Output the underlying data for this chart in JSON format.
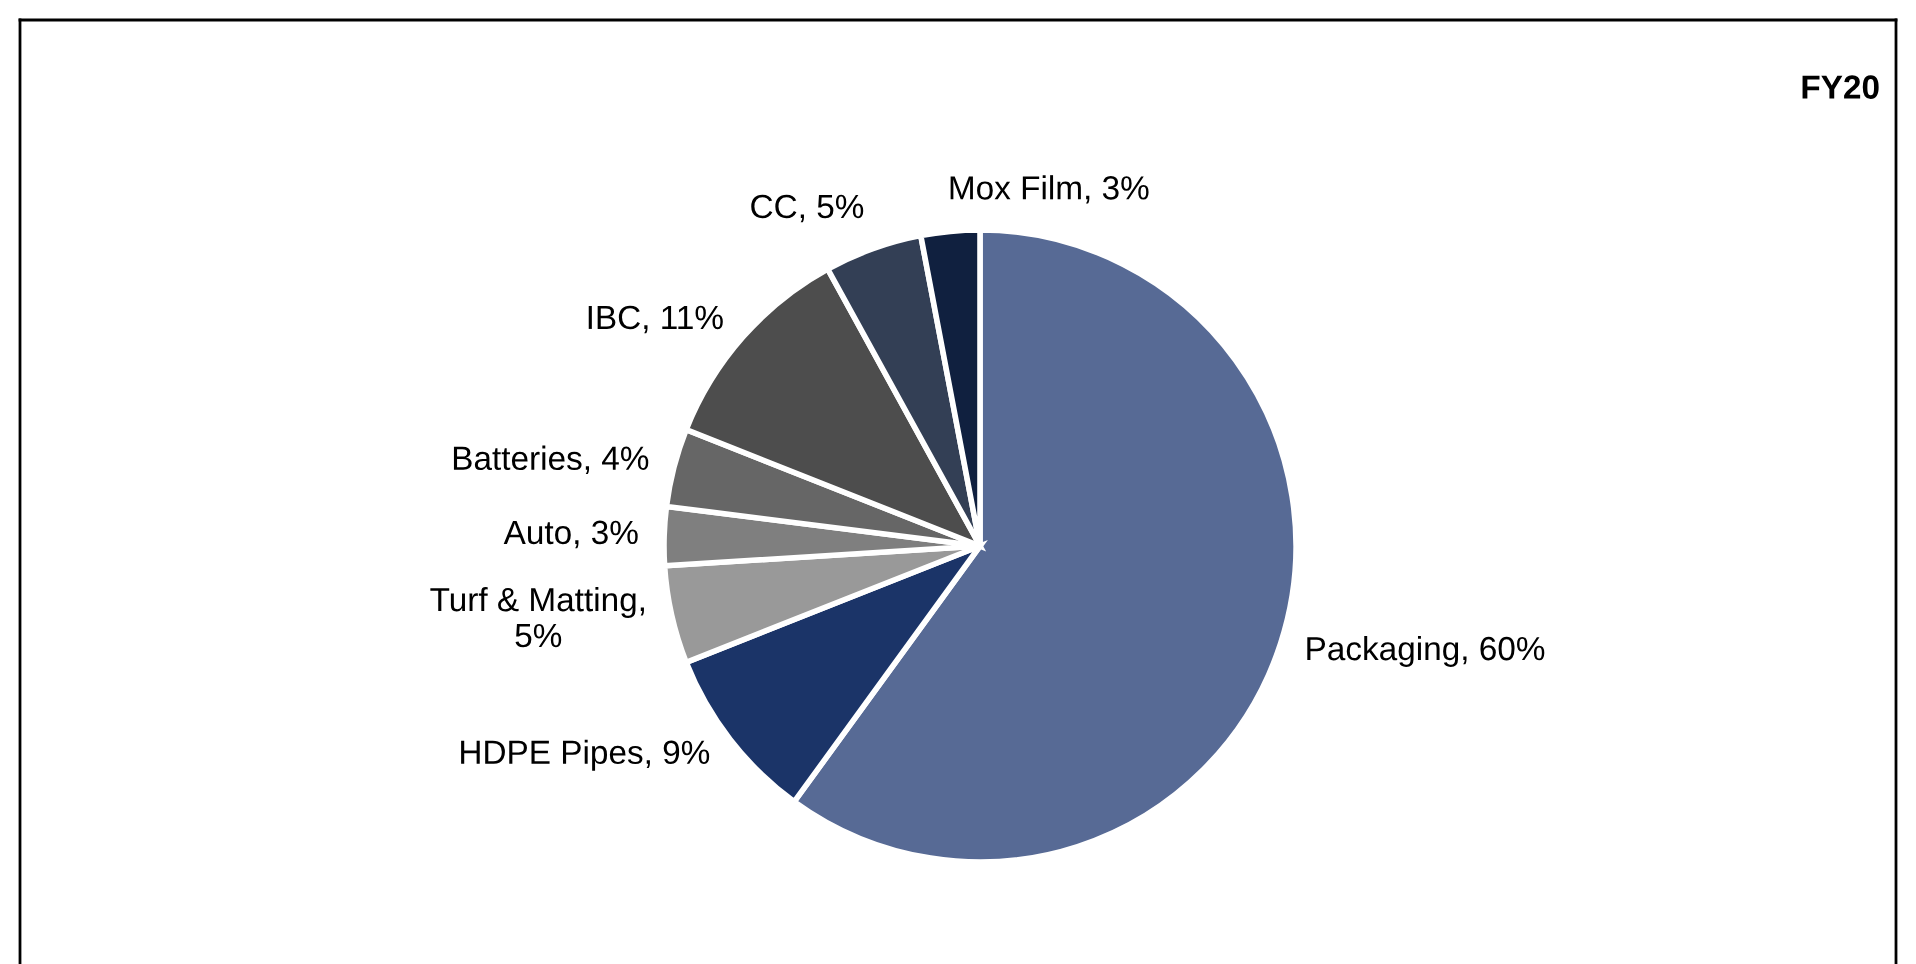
{
  "chart_data": {
    "type": "pie",
    "title": "FY20",
    "categories": [
      "Packaging, 60%",
      "HDPE Pipes, 9%",
      "Turf & Matting, 5%",
      "Auto, 3%",
      "Batteries, 4%",
      "IBC, 11%",
      "CC, 5%",
      "Mox Film, 3%"
    ],
    "values": [
      60,
      9,
      5,
      3,
      4,
      11,
      5,
      3
    ],
    "colors": [
      "#576a95",
      "#1b3468",
      "#999999",
      "#7f7f7f",
      "#666666",
      "#4d4d4d",
      "#333f55",
      "#10203f"
    ],
    "legend": false
  }
}
